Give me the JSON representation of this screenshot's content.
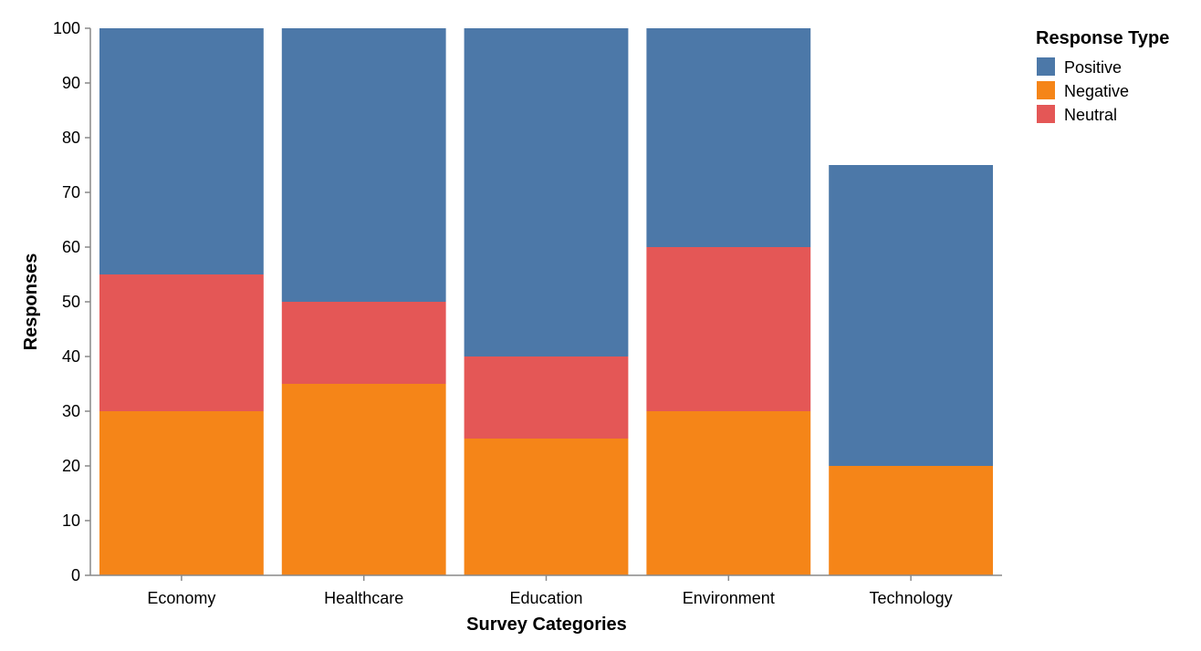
{
  "chart_data": {
    "type": "bar",
    "stacked": true,
    "categories": [
      "Economy",
      "Healthcare",
      "Education",
      "Environment",
      "Technology"
    ],
    "series": [
      {
        "name": "Negative",
        "color": "#f58518",
        "values": [
          30,
          35,
          25,
          30,
          20
        ]
      },
      {
        "name": "Neutral",
        "color": "#e45756",
        "values": [
          25,
          15,
          15,
          30,
          0
        ]
      },
      {
        "name": "Positive",
        "color": "#4c78a8",
        "values": [
          45,
          50,
          60,
          40,
          55
        ]
      }
    ],
    "xlabel": "Survey Categories",
    "ylabel": "Responses",
    "ylim": [
      0,
      100
    ],
    "yticks": [
      0,
      10,
      20,
      30,
      40,
      50,
      60,
      70,
      80,
      90,
      100
    ],
    "grid": false,
    "legend": {
      "title": "Response Type",
      "placement": "top-right",
      "entries": [
        {
          "label": "Positive",
          "color": "#4c78a8"
        },
        {
          "label": "Negative",
          "color": "#f58518"
        },
        {
          "label": "Neutral",
          "color": "#e45756"
        }
      ]
    }
  }
}
